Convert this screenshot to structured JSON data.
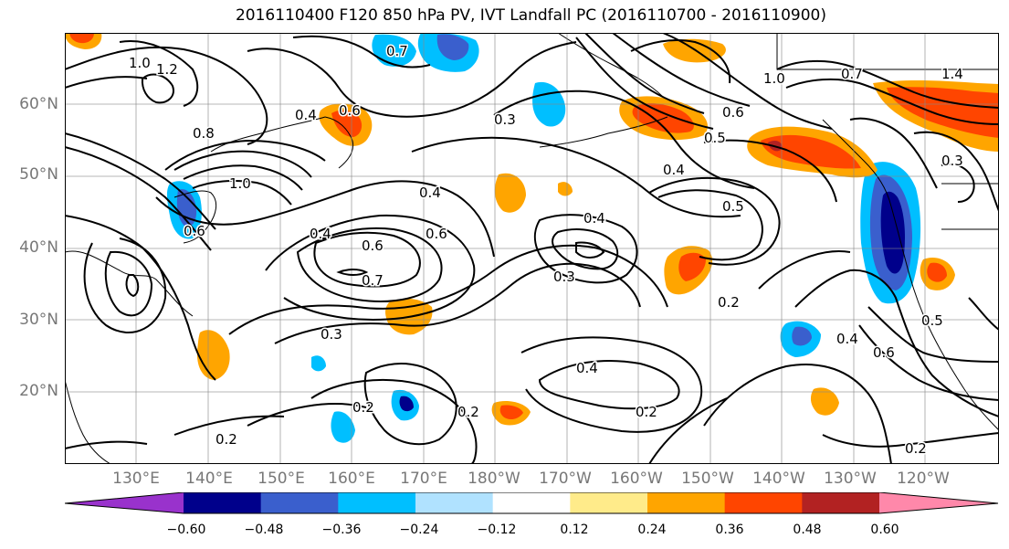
{
  "title": "2016110400 F120 850 hPa PV, IVT Landfall PC (2016110700 - 2016110900)",
  "map": {
    "lat_labels": [
      "60°N",
      "50°N",
      "40°N",
      "30°N",
      "20°N"
    ],
    "lon_labels": [
      "130°E",
      "140°E",
      "150°E",
      "160°E",
      "170°E",
      "180°W",
      "170°W",
      "160°W",
      "150°W",
      "140°W",
      "130°W",
      "120°W"
    ],
    "contour_labels": [
      "1.0",
      "1.2",
      "0.8",
      "1.0",
      "0.6",
      "0.4",
      "0.6",
      "0.7",
      "0.3",
      "0.4",
      "0.4",
      "0.6",
      "0.7",
      "0.3",
      "0.4",
      "0.6",
      "0.5",
      "0.4",
      "0.5",
      "0.2",
      "0.3",
      "0.4",
      "0.2",
      "0.2",
      "0.2",
      "0.2",
      "0.4",
      "0.6",
      "0.5",
      "0.2",
      "1.4",
      "0.7",
      "1.0",
      "0.6",
      "0.3"
    ]
  },
  "colorbar": {
    "colors": [
      "#9932cc",
      "#00008b",
      "#3a5fcd",
      "#00bfff",
      "#b0e2ff",
      "#ffffff",
      "#ffeb8a",
      "#ffa500",
      "#ff4500",
      "#b22222",
      "#ff88aa"
    ],
    "tick_labels": [
      "−0.60",
      "−0.48",
      "−0.36",
      "−0.24",
      "−0.12",
      "0.12",
      "0.24",
      "0.36",
      "0.48",
      "0.60"
    ]
  }
}
